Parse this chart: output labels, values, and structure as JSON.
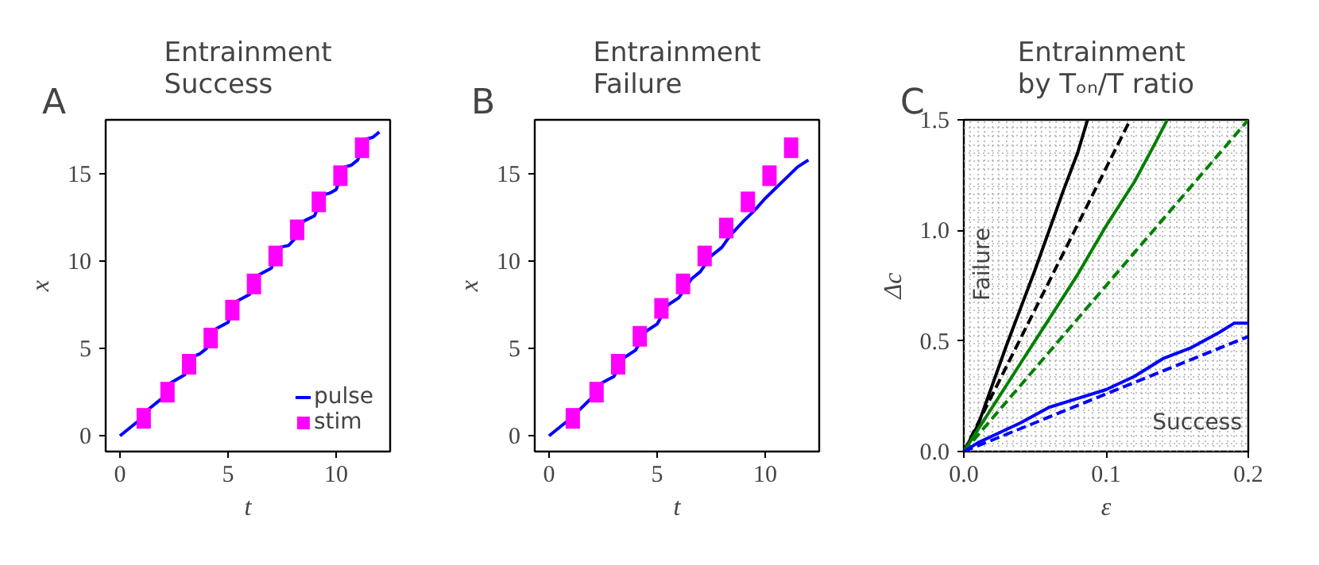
{
  "chart_data": [
    {
      "type": "line",
      "title": "Entrainment\nSuccess",
      "xlabel": "t",
      "ylabel": "x",
      "annotations": [
        "A"
      ],
      "xlim": [
        -0.66,
        12.5
      ],
      "ylim": [
        -0.9,
        18.1
      ],
      "xticks": [
        0,
        5,
        10
      ],
      "yticks": [
        0,
        5,
        10,
        15
      ],
      "grid": false,
      "legend": "bottom right",
      "series": [
        {
          "name": "pulse",
          "color": "#0000ff",
          "x": [
            0,
            1,
            1.3,
            2,
            2.3,
            3,
            3.3,
            3.7,
            4,
            4.4,
            5,
            5.4,
            6,
            6.4,
            7,
            7.4,
            7.8,
            8.1,
            8.5,
            9,
            9.4,
            9.7,
            10,
            10.4,
            10.7,
            11,
            11.4,
            11.7,
            12
          ],
          "values": [
            0,
            1,
            1.5,
            2.2,
            3,
            3.5,
            4.5,
            4.7,
            5,
            6.1,
            6.5,
            7.7,
            8.1,
            9.2,
            9.6,
            10.8,
            10.9,
            11.3,
            12.3,
            12.6,
            13.8,
            13.9,
            14.1,
            15.4,
            15.5,
            15.8,
            17,
            17.1,
            17.4
          ]
        },
        {
          "name": "stim",
          "type": "scatter",
          "marker": "square",
          "color": "#ff00ff",
          "x": [
            1.1,
            2.2,
            3.2,
            4.2,
            5.2,
            6.2,
            7.2,
            8.2,
            9.2,
            10.2,
            11.2
          ],
          "values": [
            1,
            2.5,
            4.1,
            5.6,
            7.2,
            8.7,
            10.3,
            11.8,
            13.4,
            14.9,
            16.5
          ]
        }
      ]
    },
    {
      "type": "line",
      "title": "Entrainment\nFailure",
      "xlabel": "t",
      "ylabel": "x",
      "annotations": [
        "B"
      ],
      "xlim": [
        -0.66,
        12.5
      ],
      "ylim": [
        -0.9,
        18.1
      ],
      "xticks": [
        0,
        5,
        10
      ],
      "yticks": [
        0,
        5,
        10,
        15
      ],
      "grid": false,
      "series": [
        {
          "color": "#0000ff",
          "x": [
            0,
            1,
            2,
            2.4,
            3,
            3.5,
            4,
            4.5,
            5,
            5.5,
            6,
            6.6,
            7,
            7.5,
            8,
            8.4,
            9,
            9.5,
            10,
            10.5,
            11,
            11.5,
            12
          ],
          "values": [
            0,
            1,
            2.2,
            3,
            3.4,
            4.5,
            4.9,
            6,
            6.4,
            7.5,
            7.9,
            9,
            9.4,
            10.3,
            10.8,
            11.5,
            12.3,
            12.9,
            13.6,
            14.2,
            14.8,
            15.4,
            15.8
          ]
        },
        {
          "type": "scatter",
          "marker": "square",
          "color": "#ff00ff",
          "x": [
            1.1,
            2.2,
            3.2,
            4.2,
            5.2,
            6.2,
            7.2,
            8.2,
            9.2,
            10.2,
            11.2
          ],
          "values": [
            1,
            2.5,
            4.1,
            5.7,
            7.3,
            8.7,
            10.3,
            11.9,
            13.4,
            14.9,
            16.5
          ]
        }
      ]
    },
    {
      "type": "line",
      "title": "Entrainment\nby Tₒₙ/T ratio",
      "xlabel": "ε",
      "ylabel": "Δc",
      "annotations": [
        "C",
        "Failure",
        "Success"
      ],
      "xlim": [
        0,
        0.2
      ],
      "ylim": [
        0,
        1.5
      ],
      "xticks": [
        {
          "value": 0,
          "label": "0.0"
        },
        0.1,
        0.2
      ],
      "yticks": [
        {
          "value": 0,
          "label": "0.0"
        },
        0.5,
        {
          "value": 1,
          "label": "1.0"
        },
        1.5
      ],
      "grid": true,
      "series": [
        {
          "color": "#000000",
          "line_style": "solid",
          "x": [
            0,
            0.01,
            0.02,
            0.03,
            0.04,
            0.05,
            0.06,
            0.07,
            0.08,
            0.087
          ],
          "values": [
            0,
            0.12,
            0.3,
            0.48,
            0.65,
            0.82,
            1.0,
            1.18,
            1.35,
            1.5
          ]
        },
        {
          "color": "#000000",
          "line_style": "dashed",
          "x": [
            0,
            0.117
          ],
          "values": [
            0,
            1.5
          ]
        },
        {
          "color": "#008000",
          "line_style": "solid",
          "x": [
            0,
            0.02,
            0.04,
            0.06,
            0.08,
            0.1,
            0.12,
            0.135,
            0.143
          ],
          "values": [
            0,
            0.2,
            0.4,
            0.6,
            0.8,
            1.02,
            1.22,
            1.4,
            1.5
          ]
        },
        {
          "color": "#008000",
          "line_style": "dashed",
          "x": [
            0,
            0.2
          ],
          "values": [
            0,
            1.5
          ]
        },
        {
          "color": "#0000ff",
          "line_style": "solid",
          "x": [
            0,
            0.01,
            0.02,
            0.04,
            0.06,
            0.08,
            0.1,
            0.12,
            0.14,
            0.16,
            0.18,
            0.19,
            0.2
          ],
          "values": [
            0,
            0.04,
            0.07,
            0.13,
            0.2,
            0.24,
            0.28,
            0.34,
            0.42,
            0.47,
            0.54,
            0.58,
            0.58
          ]
        },
        {
          "color": "#0000ff",
          "line_style": "dashed",
          "x": [
            0,
            0.2
          ],
          "values": [
            0,
            0.52
          ]
        }
      ]
    }
  ]
}
